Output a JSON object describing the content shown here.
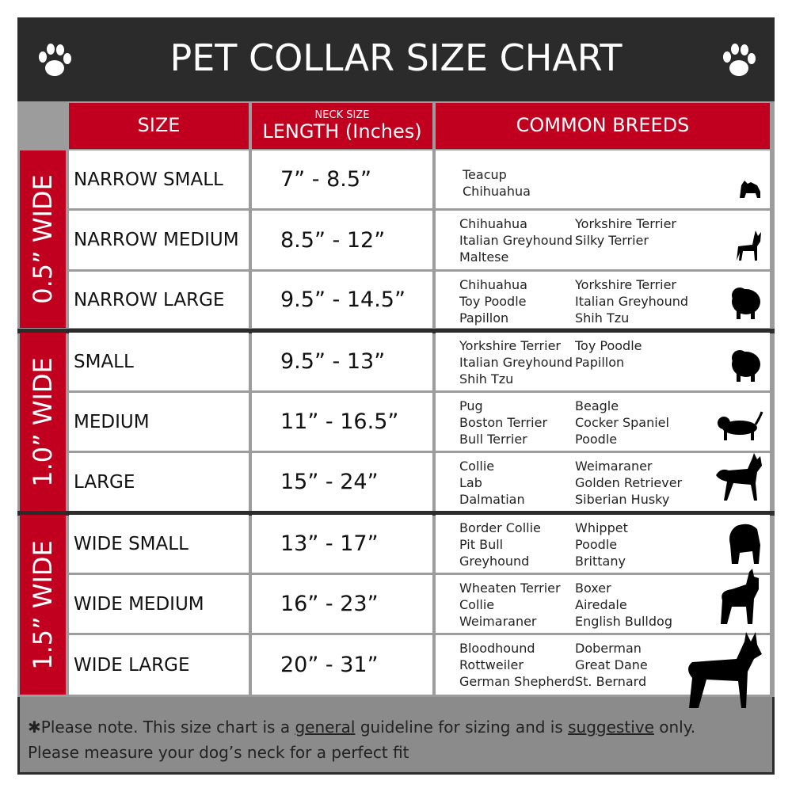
{
  "title": "PET COLLAR SIZE CHART",
  "headers": {
    "size": "SIZE",
    "length_small": "NECK SIZE",
    "length": "LENGTH (Inches)",
    "breeds": "COMMON BREEDS"
  },
  "colors": {
    "header_bg": "#2b2b2b",
    "accent_red": "#c1001f",
    "grid": "#9c9c9c",
    "footer_bg": "#8b8b8b"
  },
  "groups": [
    {
      "label": "0.5” WIDE",
      "rows": [
        {
          "size": "NARROW SMALL",
          "length": "7” - 8.5”",
          "col1": [
            "Teacup",
            "Chihuahua"
          ],
          "col2": [],
          "icon": "yorkie-silhouette-icon"
        },
        {
          "size": "NARROW MEDIUM",
          "length": "8.5” - 12”",
          "col1": [
            "Chihuahua",
            "Italian Greyhound",
            "Maltese"
          ],
          "col2": [
            "Yorkshire Terrier",
            "Silky Terrier"
          ],
          "icon": "chihuahua-silhouette-icon"
        },
        {
          "size": "NARROW LARGE",
          "length": "9.5” - 14.5”",
          "col1": [
            "Chihuahua",
            "Toy Poodle",
            "Papillon"
          ],
          "col2": [
            "Yorkshire Terrier",
            "Italian Greyhound",
            "Shih Tzu"
          ],
          "icon": "pomeranian-silhouette-icon"
        }
      ]
    },
    {
      "label": "1.0” WIDE",
      "rows": [
        {
          "size": "SMALL",
          "length": "9.5” - 13”",
          "col1": [
            "Yorkshire Terrier",
            "Italian Greyhound",
            "Shih Tzu"
          ],
          "col2": [
            "Toy Poodle",
            "Papillon"
          ],
          "icon": "pomeranian-silhouette-icon"
        },
        {
          "size": "MEDIUM",
          "length": "11” - 16.5”",
          "col1": [
            "Pug",
            "Boston Terrier",
            "Bull Terrier"
          ],
          "col2": [
            "Beagle",
            "Cocker Spaniel",
            "Poodle"
          ],
          "icon": "dachshund-silhouette-icon"
        },
        {
          "size": "LARGE",
          "length": "15” - 24”",
          "col1": [
            "Collie",
            "Lab",
            "Dalmatian"
          ],
          "col2": [
            "Weimaraner",
            "Golden Retriever",
            "Siberian Husky"
          ],
          "icon": "shepherd-silhouette-icon"
        }
      ]
    },
    {
      "label": "1.5” WIDE",
      "rows": [
        {
          "size": "WIDE SMALL",
          "length": "13” - 17”",
          "col1": [
            "Border Collie",
            "Pit Bull",
            "Greyhound"
          ],
          "col2": [
            "Whippet",
            "Poodle",
            "Brittany"
          ],
          "icon": "bulldog-silhouette-icon"
        },
        {
          "size": "WIDE MEDIUM",
          "length": "16” - 23”",
          "col1": [
            "Wheaten Terrier",
            "Collie",
            "Weimaraner"
          ],
          "col2": [
            "Boxer",
            "Airedale",
            "English Bulldog"
          ],
          "icon": "pitbull-silhouette-icon"
        },
        {
          "size": "WIDE LARGE",
          "length": "20” - 31”",
          "col1": [
            "Bloodhound",
            "Rottweiler",
            "German Shepherd"
          ],
          "col2": [
            "Doberman",
            "Great Dane",
            "St. Bernard"
          ],
          "icon": "doberman-silhouette-icon"
        }
      ]
    }
  ],
  "footer": {
    "part1": "✱Please note. This size chart is a ",
    "general": "general",
    "part2": " guideline for sizing and is ",
    "suggestive": "suggestive",
    "part3": " only.",
    "line2": "Please measure your dog’s neck for a perfect fit"
  }
}
